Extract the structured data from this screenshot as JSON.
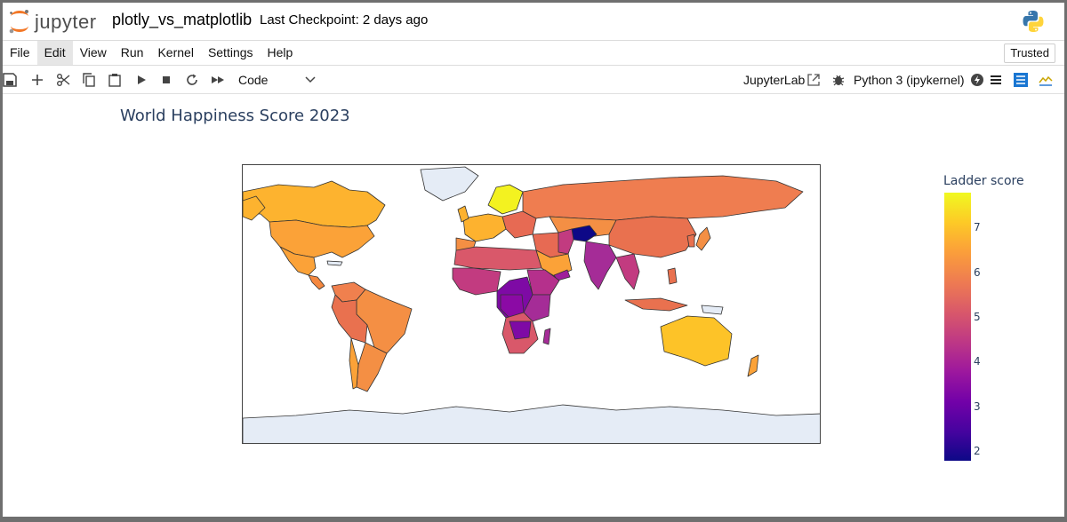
{
  "app": {
    "logo_text": "jupyter",
    "notebook_title": "plotly_vs_matplotlib",
    "checkpoint": "Last Checkpoint: 2 days ago"
  },
  "menu": {
    "items": [
      "File",
      "Edit",
      "View",
      "Run",
      "Kernel",
      "Settings",
      "Help"
    ],
    "active": "Edit",
    "trusted_label": "Trusted"
  },
  "toolbar": {
    "icons": [
      "save-icon",
      "add-icon",
      "cut-icon",
      "copy-icon",
      "paste-icon",
      "run-icon",
      "stop-icon",
      "restart-icon",
      "fast-forward-icon"
    ],
    "cell_type": "Code",
    "jupyterlab_label": "JupyterLab",
    "kernel_name": "Python 3 (ipykernel)"
  },
  "chart_data": {
    "type": "choropleth",
    "title": "World Happiness Score 2023",
    "colorbar_title": "Ladder score",
    "colorbar_ticks": [
      2,
      3,
      4,
      5,
      6,
      7
    ],
    "colorbar_range": [
      1.8,
      7.8
    ],
    "colorscale": "plasma",
    "colors": {
      "missing": "#e5ecf6",
      "border": "#333333"
    }
  }
}
